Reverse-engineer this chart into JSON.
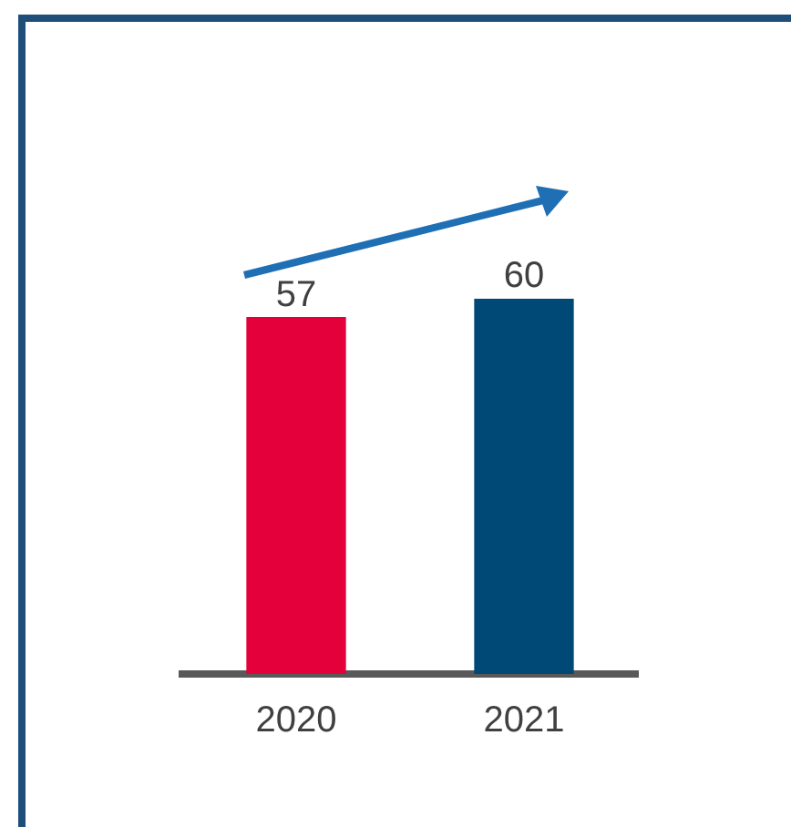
{
  "chart_data": {
    "type": "bar",
    "categories": [
      "2020",
      "2021"
    ],
    "values": [
      57,
      60
    ],
    "colors": [
      "#e4003a",
      "#004876"
    ],
    "data_labels": true,
    "grid": false,
    "legend": false
  }
}
